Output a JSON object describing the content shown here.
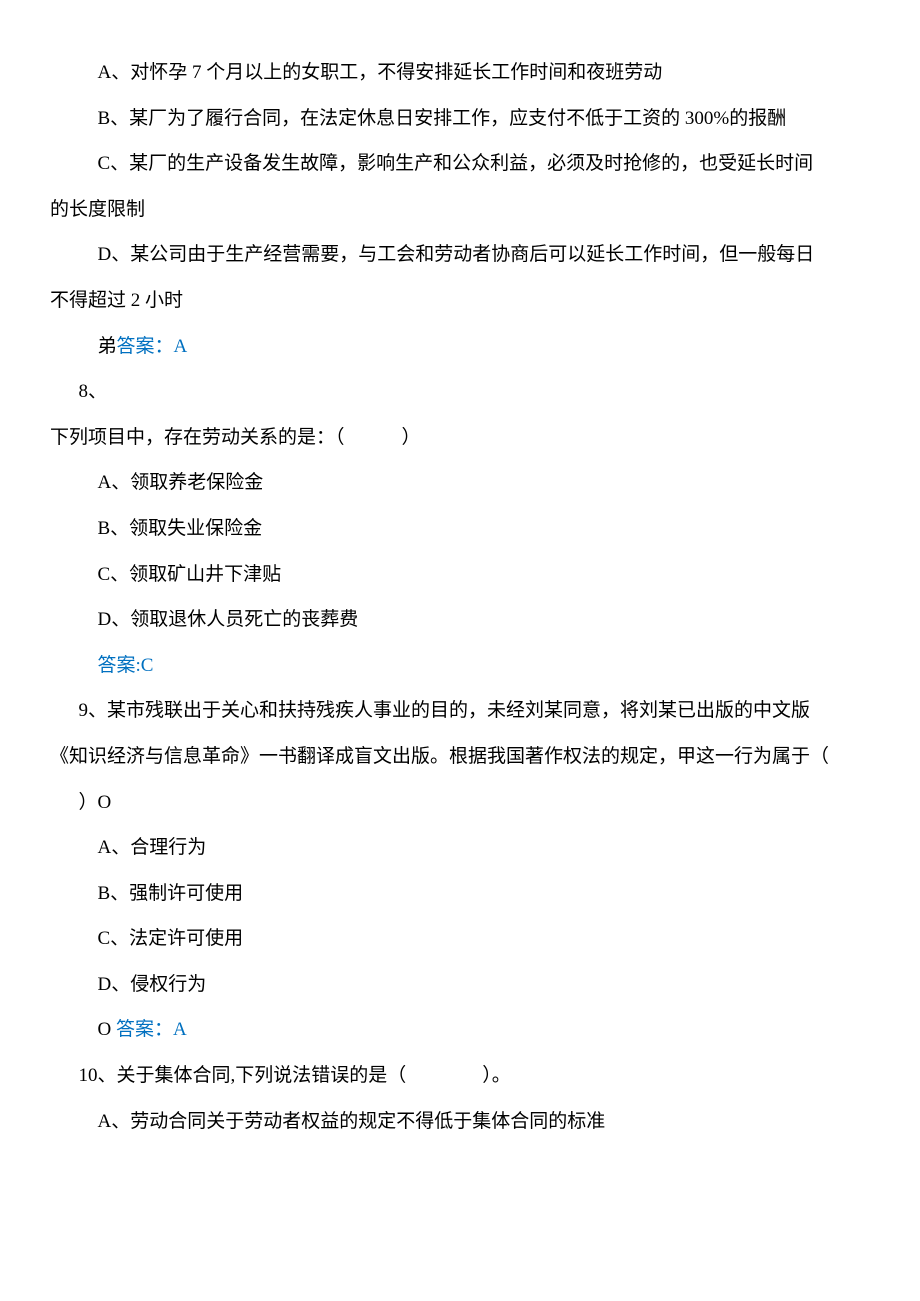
{
  "q7": {
    "optionA": "A、对怀孕 7 个月以上的女职工，不得安排延长工作时间和夜班劳动",
    "optionB": "B、某厂为了履行合同，在法定休息日安排工作，应支付不低于工资的 300%的报酬",
    "optionC_line1": "C、某厂的生产设备发生故障，影响生产和公众利益，必须及时抢修的，也受延长时间",
    "optionC_line2": "的长度限制",
    "optionD_line1": "D、某公司由于生产经营需要，与工会和劳动者协商后可以延长工作时间，但一般每日",
    "optionD_line2": "不得超过 2 小时",
    "answer_prefix": "弟",
    "answer_label": "答案：A"
  },
  "q8": {
    "number": "8、",
    "question": "下列项目中，存在劳动关系的是：（　　　）",
    "optionA": "A、领取养老保险金",
    "optionB": "B、领取失业保险金",
    "optionC": "C、领取矿山井下津贴",
    "optionD": "D、领取退休人员死亡的丧葬费",
    "answer_label": "答案:C"
  },
  "q9": {
    "line1": "9、某市残联出于关心和扶持残疾人事业的目的，未经刘某同意，将刘某已出版的中文版",
    "line2": "《知识经济与信息革命》一书翻译成盲文出版。根据我国著作权法的规定，甲这一行为属于（",
    "line3": "）O",
    "optionA": "A、合理行为",
    "optionB": "B、强制许可使用",
    "optionC": "C、法定许可使用",
    "optionD": "D、侵权行为",
    "answer_prefix": "O ",
    "answer_label": "答案：A"
  },
  "q10": {
    "question": "10、关于集体合同,下列说法错误的是（　　　　）。",
    "optionA": "A、劳动合同关于劳动者权益的规定不得低于集体合同的标准"
  },
  "styles": {
    "background_color": "#ffffff",
    "text_color": "#000000",
    "answer_color": "#0070c0",
    "font_family": "SimSun",
    "font_size": 19,
    "line_height": 2.4
  }
}
